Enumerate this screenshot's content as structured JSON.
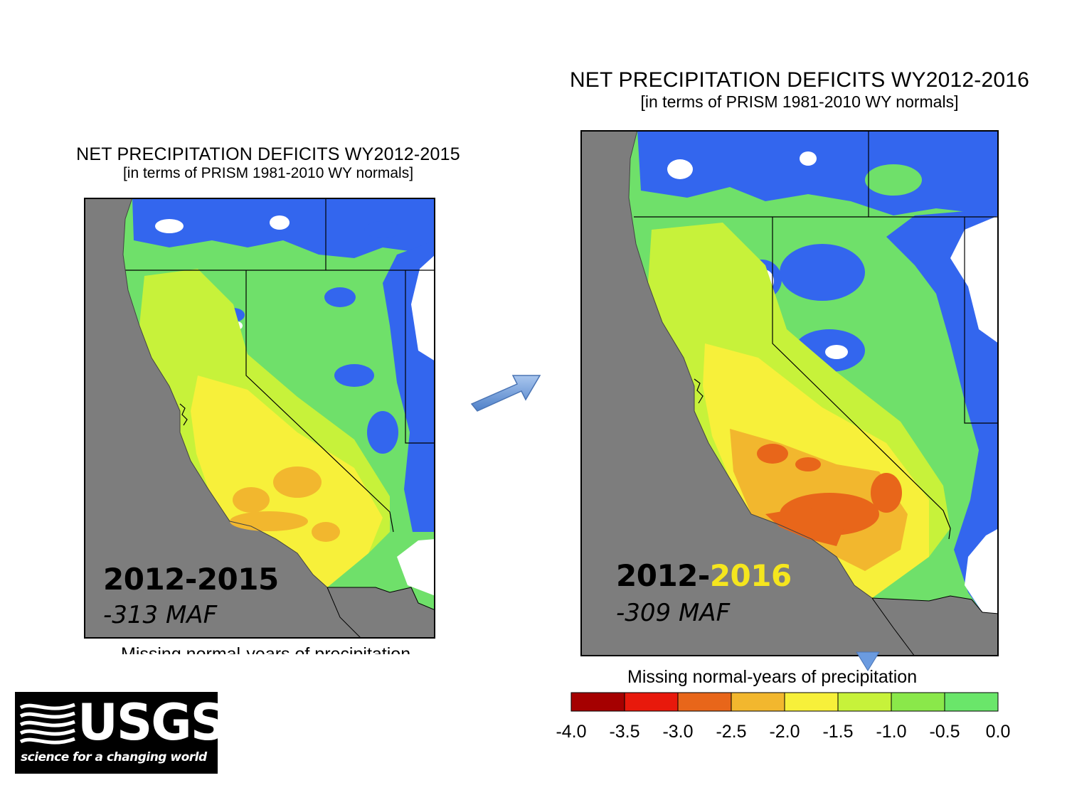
{
  "map_left": {
    "title": "NET PRECIPITATION DEFICITS WY2012-2015",
    "subtitle": "[in terms of PRISM 1981-2010 WY normals]",
    "period_label": "2012-2015",
    "deficit_label": "-313 MAF",
    "caption_partial": "Missing normal-years of precipitation"
  },
  "map_right": {
    "title": "NET PRECIPITATION DEFICITS WY2012-2016",
    "subtitle": "[in terms of PRISM 1981-2010 WY normals]",
    "period_prefix": "2012-",
    "period_highlight": "2016",
    "period_highlight_color": "#f5e61e",
    "deficit_label": "-309 MAF"
  },
  "colorbar": {
    "title": "Missing normal-years of precipitation",
    "ticks": [
      "-4.0",
      "-3.5",
      "-3.0",
      "-2.5",
      "-2.0",
      "-1.5",
      "-1.0",
      "-0.5",
      "0.0"
    ],
    "colors": [
      "#a50000",
      "#e8190c",
      "#e8661a",
      "#f2b72e",
      "#f7f03a",
      "#c7f23a",
      "#8ae84a",
      "#6ae66a",
      "#3366ee"
    ]
  },
  "arrow_icon": "right-arrow-icon",
  "logo": {
    "wordmark": "USGS",
    "tagline": "science for a changing world"
  },
  "map_colors": {
    "ocean": "#7d7d7d",
    "no_deficit": "#ffffff",
    "border": "#000000"
  }
}
